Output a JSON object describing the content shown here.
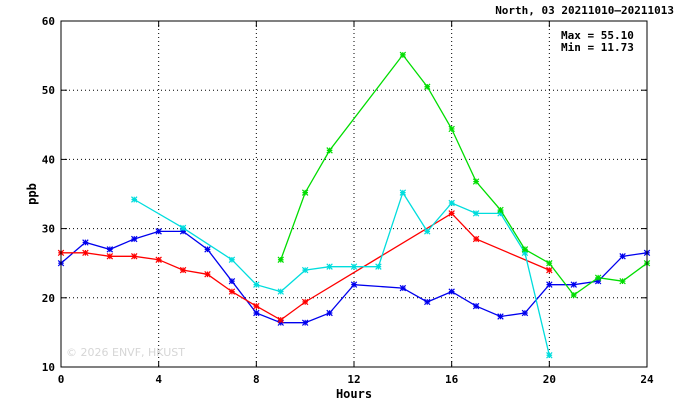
{
  "chart_data": {
    "type": "line",
    "title": "North, 03 20211010–20211013",
    "xlabel": "Hours",
    "ylabel": "ppb",
    "xlim": [
      0,
      24
    ],
    "ylim": [
      10,
      60
    ],
    "x_ticks": [
      0,
      4,
      8,
      12,
      16,
      20,
      24
    ],
    "y_ticks": [
      10,
      20,
      30,
      40,
      50,
      60
    ],
    "grid": true,
    "stats": {
      "max": "Max = 55.10",
      "min": "Min = 11.73"
    },
    "watermark": "© 2026 ENVF, HKUST",
    "series": [
      {
        "color": "#0000ee",
        "points": [
          [
            0,
            25.0
          ],
          [
            1,
            28.0
          ],
          [
            2,
            27.0
          ],
          [
            3,
            28.5
          ],
          [
            4,
            29.6
          ],
          [
            5,
            29.6
          ],
          [
            6,
            27.0
          ],
          [
            7,
            22.4
          ],
          [
            8,
            17.8
          ],
          [
            9,
            16.4
          ],
          [
            10,
            16.4
          ],
          [
            11,
            17.8
          ],
          [
            12,
            21.9
          ],
          [
            14,
            21.4
          ],
          [
            15,
            19.4
          ],
          [
            16,
            20.9
          ],
          [
            17,
            18.8
          ],
          [
            18,
            17.3
          ],
          [
            19,
            17.8
          ],
          [
            20,
            21.9
          ],
          [
            21,
            21.9
          ],
          [
            22,
            22.4
          ],
          [
            23,
            26.0
          ],
          [
            24,
            26.5
          ]
        ]
      },
      {
        "color": "#ff0000",
        "points": [
          [
            0,
            26.5
          ],
          [
            1,
            26.5
          ],
          [
            2,
            26.0
          ],
          [
            3,
            26.0
          ],
          [
            4,
            25.5
          ],
          [
            5,
            24.0
          ],
          [
            6,
            23.4
          ],
          [
            7,
            20.9
          ],
          [
            8,
            18.8
          ],
          [
            9,
            16.8
          ],
          [
            10,
            19.4
          ],
          [
            16,
            32.2
          ],
          [
            17,
            28.5
          ],
          [
            20,
            24.0
          ]
        ]
      },
      {
        "color": "#00dddd",
        "points": [
          [
            3,
            34.2
          ],
          [
            5,
            30.1
          ],
          [
            7,
            25.5
          ],
          [
            8,
            21.9
          ],
          [
            9,
            20.9
          ],
          [
            10,
            24.0
          ],
          [
            11,
            24.5
          ],
          [
            12,
            24.5
          ],
          [
            13,
            24.5
          ],
          [
            14,
            35.2
          ],
          [
            15,
            29.6
          ],
          [
            16,
            33.7
          ],
          [
            17,
            32.2
          ],
          [
            18,
            32.2
          ],
          [
            19,
            26.5
          ],
          [
            20,
            11.7
          ]
        ]
      },
      {
        "color": "#00dd00",
        "points": [
          [
            9,
            25.5
          ],
          [
            10,
            35.2
          ],
          [
            11,
            41.3
          ],
          [
            14,
            55.1
          ],
          [
            15,
            50.5
          ],
          [
            16,
            44.4
          ],
          [
            17,
            36.8
          ],
          [
            18,
            32.7
          ],
          [
            19,
            27.0
          ],
          [
            20,
            25.0
          ],
          [
            21,
            20.4
          ],
          [
            22,
            22.9
          ],
          [
            23,
            22.4
          ],
          [
            24,
            25.0
          ]
        ]
      }
    ]
  }
}
